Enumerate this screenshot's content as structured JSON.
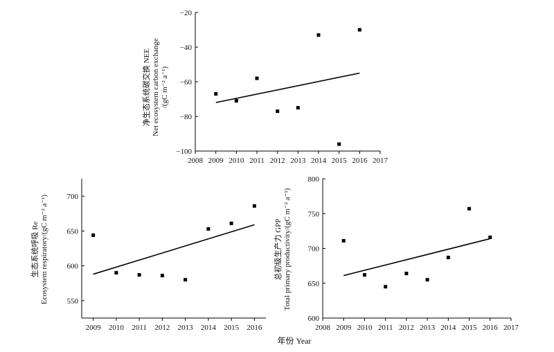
{
  "figure": {
    "xlabel": "年份 Year"
  },
  "chart_data": [
    {
      "type": "scatter",
      "ylabel_lines": [
        "净生态系统碳交换 NEE",
        "Net ecosystem carbon exchange",
        "/(gC m⁻² a⁻¹)"
      ],
      "x": [
        2009,
        2010,
        2011,
        2012,
        2013,
        2014,
        2015,
        2016
      ],
      "y": [
        -67,
        -71,
        -58,
        -77,
        -75,
        -33,
        -96,
        -30
      ],
      "trend": {
        "x": [
          2009,
          2016
        ],
        "y": [
          -72,
          -55
        ]
      },
      "xlim": [
        2008,
        2017
      ],
      "ylim": [
        -100,
        -20
      ],
      "xticks": [
        2008,
        2009,
        2010,
        2011,
        2012,
        2013,
        2014,
        2015,
        2016,
        2017
      ],
      "yticks": [
        -100,
        -80,
        -60,
        -40,
        -20
      ],
      "grid": false
    },
    {
      "type": "scatter",
      "ylabel_lines": [
        "生态系统呼吸 Re",
        "Ecosystem respiratory/(gC m⁻² a⁻¹)"
      ],
      "x": [
        2009,
        2010,
        2011,
        2012,
        2013,
        2014,
        2015,
        2016
      ],
      "y": [
        644,
        590,
        587,
        586,
        580,
        653,
        661,
        686
      ],
      "trend": {
        "x": [
          2009,
          2016
        ],
        "y": [
          588,
          659
        ]
      },
      "xlim": [
        2008.5,
        2016.5
      ],
      "ylim": [
        525,
        725
      ],
      "xticks": [
        2009,
        2010,
        2011,
        2012,
        2013,
        2014,
        2015,
        2016
      ],
      "yticks": [
        550,
        600,
        650,
        700
      ],
      "grid": false
    },
    {
      "type": "scatter",
      "ylabel_lines": [
        "总初级生产力 GPP",
        "Total primary productivity/(gC m⁻² a⁻¹)"
      ],
      "x": [
        2009,
        2010,
        2011,
        2012,
        2013,
        2014,
        2015,
        2016
      ],
      "y": [
        711,
        662,
        645,
        664,
        655,
        687,
        757,
        716
      ],
      "trend": {
        "x": [
          2009,
          2016
        ],
        "y": [
          661,
          714
        ]
      },
      "xlim": [
        2008,
        2017
      ],
      "ylim": [
        600,
        800
      ],
      "xticks": [
        2008,
        2009,
        2010,
        2011,
        2012,
        2013,
        2014,
        2015,
        2016,
        2017
      ],
      "yticks": [
        600,
        650,
        700,
        750,
        800
      ],
      "grid": false
    }
  ]
}
